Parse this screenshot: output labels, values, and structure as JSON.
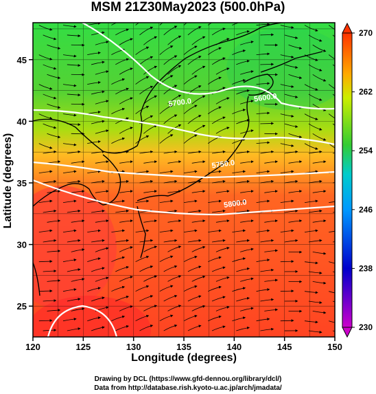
{
  "title": "MSM 21Z30May2023 (500.0hPa)",
  "x_axis": {
    "label": "Longitude (degrees)",
    "ticks": [
      120,
      125,
      130,
      135,
      140,
      145,
      150
    ],
    "range": [
      120,
      150
    ]
  },
  "y_axis": {
    "label": "Latitude  (degrees)",
    "ticks": [
      25,
      30,
      35,
      40,
      45
    ],
    "range": [
      22.5,
      48
    ]
  },
  "colorbar": {
    "ticks": [
      230,
      238,
      246,
      254,
      262,
      270
    ],
    "range": [
      230,
      270
    ],
    "colors": [
      "#cc00cc",
      "#0000cc",
      "#0099ff",
      "#00cccc",
      "#33cc33",
      "#ccee00",
      "#ffaa00",
      "#ff3300"
    ]
  },
  "contours": [
    {
      "label": "5600.0",
      "lon": 142,
      "lat": 41.6
    },
    {
      "label": "5700.0",
      "lon": 133.5,
      "lat": 41.2
    },
    {
      "label": "5750.0",
      "lon": 137.8,
      "lat": 36.2
    },
    {
      "label": "5800.0",
      "lon": 139,
      "lat": 33.0
    }
  ],
  "credits": [
    "Drawing by DCL (https://www.gfd-dennou.org/library/dcl/)",
    "Data from http://database.rish.kyoto-u.ac.jp/arch/jmadata/"
  ]
}
